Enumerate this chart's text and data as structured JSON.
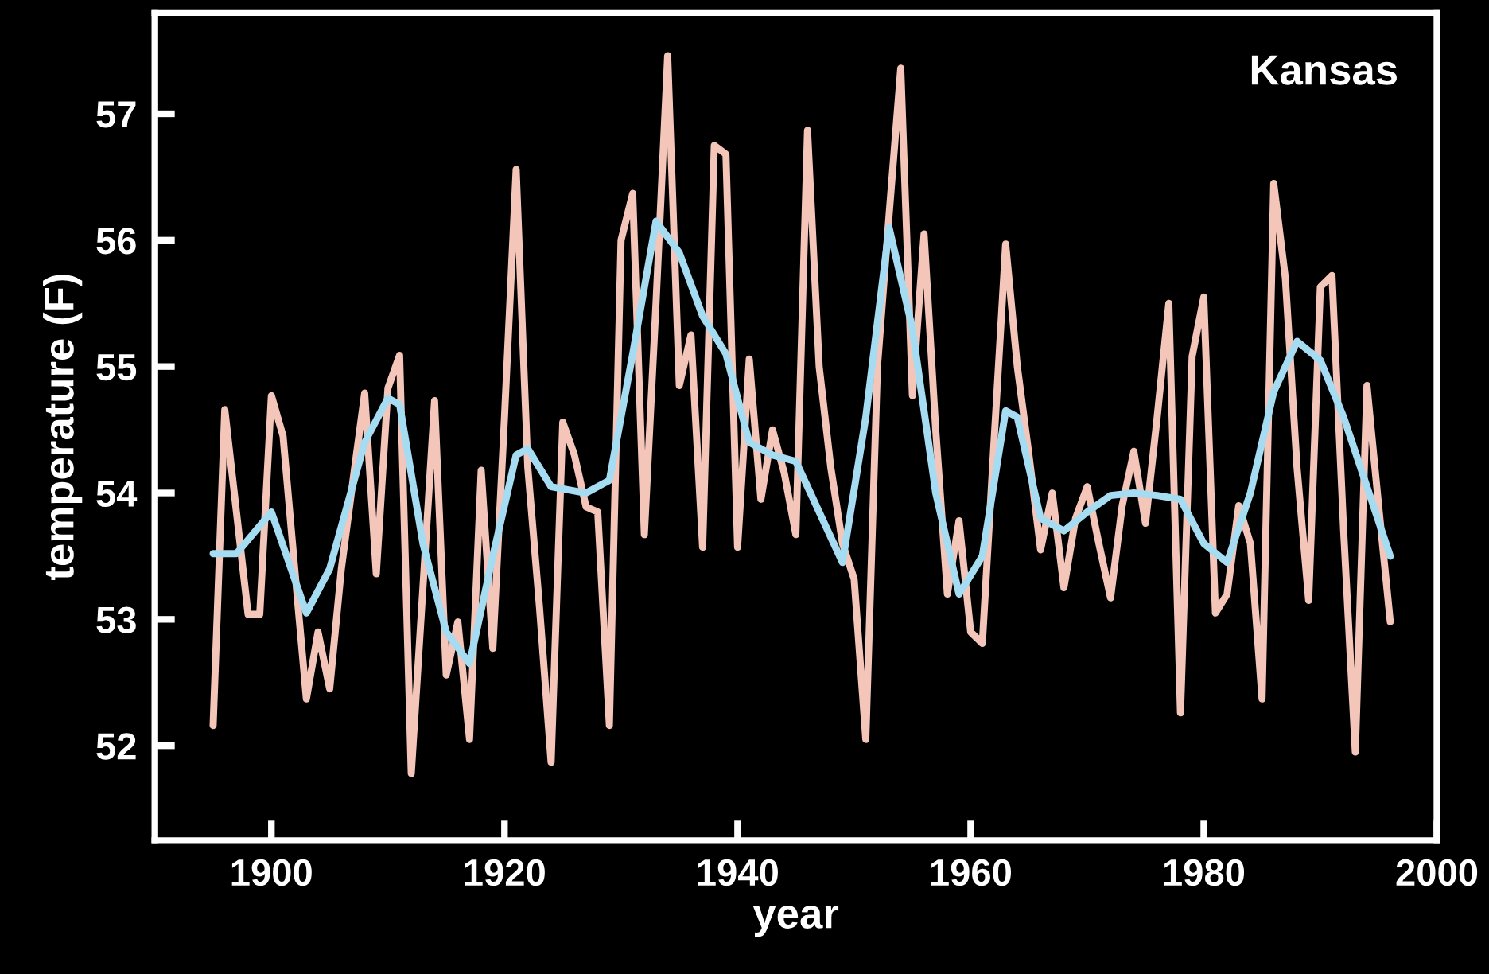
{
  "chart_data": {
    "type": "line",
    "title": "Kansas",
    "xlabel": "year",
    "ylabel": "temperature (F)",
    "xlim": [
      1890,
      2000
    ],
    "xticks": [
      1900,
      1920,
      1940,
      1960,
      1980,
      2000
    ],
    "ylim": [
      51.25,
      57.8
    ],
    "yticks": [
      52,
      53,
      54,
      55,
      56,
      57
    ],
    "series": [
      {
        "color": "#f4c6ba",
        "x": [
          1895,
          1896,
          1897,
          1898,
          1899,
          1900,
          1901,
          1902,
          1903,
          1904,
          1905,
          1906,
          1907,
          1908,
          1909,
          1910,
          1911,
          1912,
          1913,
          1914,
          1915,
          1916,
          1917,
          1918,
          1919,
          1920,
          1921,
          1922,
          1923,
          1924,
          1925,
          1926,
          1927,
          1928,
          1929,
          1930,
          1931,
          1932,
          1933,
          1934,
          1935,
          1936,
          1937,
          1938,
          1939,
          1940,
          1941,
          1942,
          1943,
          1944,
          1945,
          1946,
          1947,
          1948,
          1949,
          1950,
          1951,
          1952,
          1953,
          1954,
          1955,
          1956,
          1957,
          1958,
          1959,
          1960,
          1961,
          1962,
          1963,
          1964,
          1965,
          1966,
          1967,
          1968,
          1969,
          1970,
          1971,
          1972,
          1973,
          1974,
          1975,
          1976,
          1977,
          1978,
          1979,
          1980,
          1981,
          1982,
          1983,
          1984,
          1985,
          1986,
          1987,
          1988,
          1989,
          1990,
          1991,
          1992,
          1993,
          1994,
          1995,
          1996
        ],
        "values": [
          52.16,
          54.66,
          53.85,
          53.04,
          53.04,
          54.77,
          54.45,
          53.4,
          52.37,
          52.9,
          52.45,
          53.4,
          54.1,
          54.79,
          53.36,
          54.83,
          55.09,
          51.78,
          53.25,
          54.73,
          52.56,
          52.98,
          52.05,
          54.18,
          52.77,
          54.6,
          56.56,
          54.2,
          53.1,
          51.87,
          54.56,
          54.3,
          53.89,
          53.85,
          52.16,
          56.0,
          56.37,
          53.67,
          55.5,
          57.46,
          54.85,
          55.25,
          53.57,
          56.75,
          56.68,
          53.57,
          55.06,
          53.95,
          54.5,
          54.16,
          53.67,
          56.87,
          55.0,
          54.2,
          53.6,
          53.32,
          52.05,
          55.0,
          56.2,
          57.36,
          54.77,
          56.05,
          54.5,
          53.2,
          53.78,
          52.9,
          52.81,
          54.4,
          55.97,
          55.0,
          54.3,
          53.55,
          54.0,
          53.25,
          53.8,
          54.05,
          53.6,
          53.17,
          53.9,
          54.33,
          53.76,
          54.6,
          55.5,
          52.26,
          55.08,
          55.55,
          53.05,
          53.2,
          53.9,
          53.6,
          52.37,
          56.45,
          55.7,
          54.2,
          53.15,
          55.63,
          55.72,
          53.7,
          51.95,
          54.85,
          53.9,
          52.98
        ]
      },
      {
        "color": "#a6dcf2",
        "x": [
          1895,
          1897,
          1900,
          1903,
          1905,
          1908,
          1910,
          1911,
          1913,
          1915,
          1917,
          1919,
          1921,
          1922,
          1924,
          1927,
          1929,
          1931,
          1933,
          1935,
          1937,
          1939,
          1941,
          1943,
          1945,
          1947,
          1949,
          1951,
          1953,
          1955,
          1957,
          1959,
          1961,
          1963,
          1964,
          1966,
          1968,
          1970,
          1972,
          1974,
          1976,
          1978,
          1980,
          1982,
          1984,
          1986,
          1988,
          1990,
          1992,
          1994,
          1996
        ],
        "values": [
          53.52,
          53.52,
          53.85,
          53.05,
          53.4,
          54.4,
          54.75,
          54.7,
          53.6,
          52.9,
          52.65,
          53.5,
          54.3,
          54.35,
          54.05,
          54.0,
          54.1,
          55.1,
          56.15,
          55.9,
          55.4,
          55.1,
          54.4,
          54.3,
          54.25,
          53.85,
          53.45,
          54.6,
          56.1,
          55.3,
          54.0,
          53.2,
          53.5,
          54.65,
          54.6,
          53.8,
          53.7,
          53.85,
          53.98,
          54.0,
          53.98,
          53.95,
          53.6,
          53.45,
          54.0,
          54.8,
          55.2,
          55.05,
          54.6,
          54.05,
          53.5
        ]
      }
    ]
  }
}
